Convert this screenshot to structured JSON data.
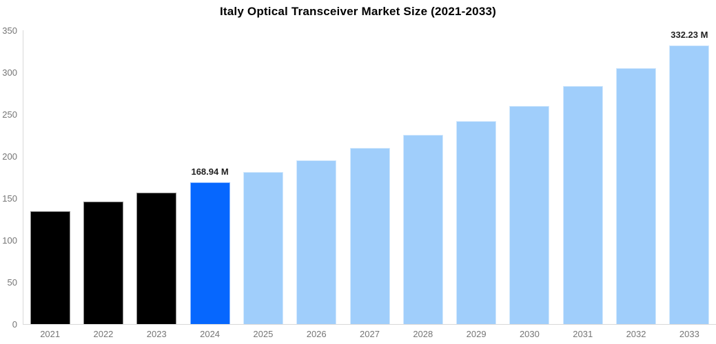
{
  "chart_data": {
    "type": "bar",
    "title": "Italy Optical Transceiver Market Size (2021-2033)",
    "categories": [
      "2021",
      "2022",
      "2023",
      "2024",
      "2025",
      "2026",
      "2027",
      "2028",
      "2029",
      "2030",
      "2031",
      "2032",
      "2033"
    ],
    "values": [
      134.8,
      145.6,
      156.6,
      168.94,
      181.1,
      195.3,
      209.8,
      225.2,
      241.9,
      259.8,
      284.0,
      305.2,
      332.23
    ],
    "unit": "M",
    "data_labels": {
      "2024": "168.94 M",
      "2033": "332.23 M"
    },
    "xlabel": "",
    "ylabel": "",
    "ylim": [
      0,
      350
    ],
    "ytick_step": 50,
    "grid": false,
    "legend": false,
    "bar_roles": [
      "historical",
      "historical",
      "historical",
      "highlight",
      "forecast",
      "forecast",
      "forecast",
      "forecast",
      "forecast",
      "forecast",
      "forecast",
      "forecast",
      "forecast"
    ],
    "colors": {
      "historical_bar": "#000000",
      "highlight_bar": "#0667fe",
      "forecast_bar": "#a0cefb",
      "axis_line": "#d8d8d8",
      "tick_label": "#757575",
      "data_label": "#222222",
      "title": "#000000"
    }
  }
}
